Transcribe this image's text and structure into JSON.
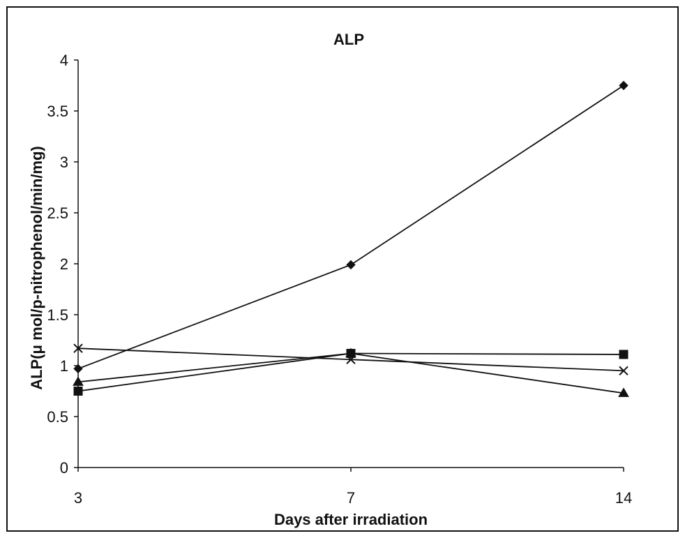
{
  "chart_data": {
    "type": "line",
    "title": "ALP",
    "xlabel": "Days after irradiation",
    "ylabel": "ALP(μ mol/p-nitrophenol/min/mg)",
    "categories": [
      "3",
      "7",
      "14"
    ],
    "ylim": [
      0,
      4
    ],
    "yticks": [
      "0",
      "0.5",
      "1",
      "1.5",
      "2",
      "2.5",
      "3",
      "3.5",
      "4"
    ],
    "grid": false,
    "legend": "none",
    "series": [
      {
        "marker": "diamond",
        "values": [
          0.97,
          1.99,
          3.75
        ]
      },
      {
        "marker": "square",
        "values": [
          0.75,
          1.12,
          1.11
        ]
      },
      {
        "marker": "triangle",
        "values": [
          0.84,
          1.12,
          0.73
        ]
      },
      {
        "marker": "cross",
        "values": [
          1.17,
          1.06,
          0.95
        ]
      }
    ],
    "colors": {
      "line": "#111111",
      "frame": "#111111",
      "background": "#ffffff"
    }
  }
}
